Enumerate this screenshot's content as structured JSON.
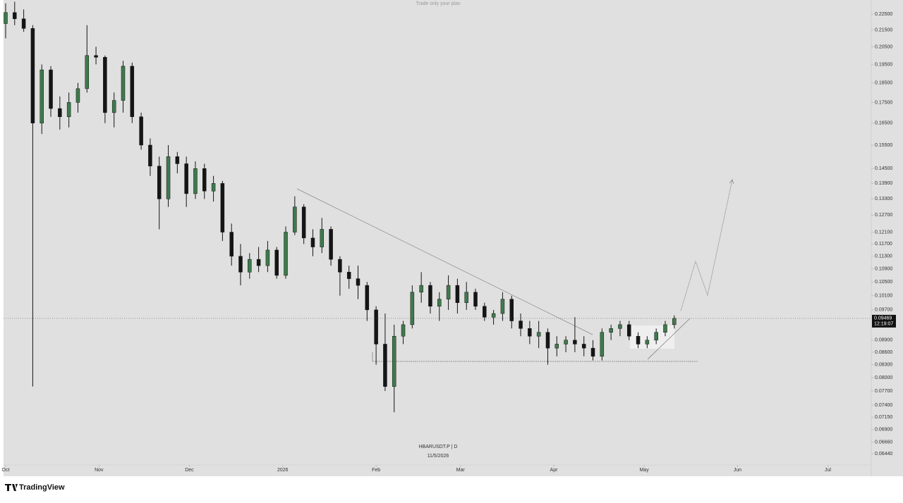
{
  "chart_data": {
    "type": "candlestick",
    "title": "Trade only your plan",
    "symbol": "HBARUSDT.P | D",
    "date_label": "11/5/2026",
    "brand": "TradingView",
    "last_price": 0.09469,
    "countdown": "12:19:07",
    "log_scale": true,
    "up_color": "#3f7a4c",
    "down_color": "#151515",
    "xlim": [
      -0.7,
      287.4
    ],
    "ylim": [
      0.0624,
      0.2342
    ],
    "xticks": [
      {
        "value": 0,
        "label": "Oct"
      },
      {
        "value": 31,
        "label": "Nov"
      },
      {
        "value": 61,
        "label": "Dec"
      },
      {
        "value": 92,
        "label": "2026"
      },
      {
        "value": 123,
        "label": "Feb"
      },
      {
        "value": 151,
        "label": "Mar"
      },
      {
        "value": 182,
        "label": "Apr"
      },
      {
        "value": 212,
        "label": "May"
      },
      {
        "value": 243,
        "label": "Jun"
      },
      {
        "value": 273,
        "label": "Jul"
      }
    ],
    "yticks": [
      {
        "value": 0.225,
        "label": "0.22500"
      },
      {
        "value": 0.215,
        "label": "0.21500"
      },
      {
        "value": 0.205,
        "label": "0.20500"
      },
      {
        "value": 0.195,
        "label": "0.19500"
      },
      {
        "value": 0.185,
        "label": "0.18500"
      },
      {
        "value": 0.175,
        "label": "0.17500"
      },
      {
        "value": 0.165,
        "label": "0.16500"
      },
      {
        "value": 0.155,
        "label": "0.15500"
      },
      {
        "value": 0.145,
        "label": "0.14500"
      },
      {
        "value": 0.139,
        "label": "0.13900"
      },
      {
        "value": 0.133,
        "label": "0.13300"
      },
      {
        "value": 0.127,
        "label": "0.12700"
      },
      {
        "value": 0.121,
        "label": "0.12100"
      },
      {
        "value": 0.117,
        "label": "0.11700"
      },
      {
        "value": 0.113,
        "label": "0.11300"
      },
      {
        "value": 0.109,
        "label": "0.10900"
      },
      {
        "value": 0.105,
        "label": "0.10500"
      },
      {
        "value": 0.101,
        "label": "0.10100"
      },
      {
        "value": 0.097,
        "label": "0.09700"
      },
      {
        "value": 0.089,
        "label": "0.08900"
      },
      {
        "value": 0.086,
        "label": "0.08600"
      },
      {
        "value": 0.083,
        "label": "0.08300"
      },
      {
        "value": 0.08,
        "label": "0.08000"
      },
      {
        "value": 0.077,
        "label": "0.07700"
      },
      {
        "value": 0.074,
        "label": "0.07400"
      },
      {
        "value": 0.0715,
        "label": "0.07150"
      },
      {
        "value": 0.069,
        "label": "0.06900"
      },
      {
        "value": 0.0666,
        "label": "0.06660"
      },
      {
        "value": 0.0644,
        "label": "0.06440"
      }
    ],
    "x": [
      0,
      3,
      6,
      9,
      12,
      15,
      18,
      21,
      24,
      27,
      30,
      33,
      36,
      39,
      42,
      45,
      48,
      51,
      54,
      57,
      60,
      63,
      66,
      69,
      72,
      75,
      78,
      81,
      84,
      87,
      90,
      93,
      96,
      99,
      102,
      105,
      108,
      111,
      114,
      117,
      120,
      123,
      126,
      129,
      132,
      135,
      138,
      141,
      144,
      147,
      150,
      153,
      156,
      159,
      162,
      165,
      168,
      171,
      174,
      177,
      180,
      183,
      186,
      189,
      192,
      195,
      198,
      201,
      204,
      207,
      210,
      213,
      216,
      219,
      222
    ],
    "candles": [
      [
        0.219,
        0.232,
        0.21,
        0.226
      ],
      [
        0.226,
        0.233,
        0.218,
        0.222
      ],
      [
        0.222,
        0.228,
        0.214,
        0.216
      ],
      [
        0.216,
        0.218,
        0.078,
        0.165
      ],
      [
        0.165,
        0.195,
        0.16,
        0.192
      ],
      [
        0.192,
        0.194,
        0.168,
        0.172
      ],
      [
        0.172,
        0.178,
        0.162,
        0.168
      ],
      [
        0.168,
        0.18,
        0.163,
        0.175
      ],
      [
        0.175,
        0.185,
        0.17,
        0.182
      ],
      [
        0.182,
        0.218,
        0.18,
        0.2
      ],
      [
        0.2,
        0.205,
        0.195,
        0.199
      ],
      [
        0.199,
        0.2,
        0.165,
        0.17
      ],
      [
        0.17,
        0.18,
        0.163,
        0.176
      ],
      [
        0.176,
        0.197,
        0.17,
        0.194
      ],
      [
        0.194,
        0.196,
        0.165,
        0.168
      ],
      [
        0.168,
        0.17,
        0.153,
        0.155
      ],
      [
        0.155,
        0.158,
        0.142,
        0.146
      ],
      [
        0.146,
        0.15,
        0.122,
        0.133
      ],
      [
        0.133,
        0.155,
        0.13,
        0.15
      ],
      [
        0.15,
        0.152,
        0.143,
        0.147
      ],
      [
        0.147,
        0.15,
        0.13,
        0.135
      ],
      [
        0.135,
        0.148,
        0.133,
        0.145
      ],
      [
        0.145,
        0.147,
        0.133,
        0.136
      ],
      [
        0.136,
        0.142,
        0.132,
        0.139
      ],
      [
        0.139,
        0.14,
        0.118,
        0.121
      ],
      [
        0.121,
        0.124,
        0.11,
        0.113
      ],
      [
        0.113,
        0.117,
        0.104,
        0.108
      ],
      [
        0.108,
        0.114,
        0.106,
        0.112
      ],
      [
        0.112,
        0.116,
        0.108,
        0.11
      ],
      [
        0.11,
        0.118,
        0.108,
        0.115
      ],
      [
        0.115,
        0.116,
        0.106,
        0.107
      ],
      [
        0.107,
        0.123,
        0.106,
        0.121
      ],
      [
        0.121,
        0.134,
        0.12,
        0.13
      ],
      [
        0.13,
        0.131,
        0.117,
        0.119
      ],
      [
        0.119,
        0.122,
        0.113,
        0.116
      ],
      [
        0.116,
        0.126,
        0.114,
        0.122
      ],
      [
        0.122,
        0.123,
        0.11,
        0.112
      ],
      [
        0.112,
        0.113,
        0.101,
        0.108
      ],
      [
        0.108,
        0.11,
        0.103,
        0.106
      ],
      [
        0.106,
        0.11,
        0.1,
        0.104
      ],
      [
        0.104,
        0.105,
        0.094,
        0.097
      ],
      [
        0.097,
        0.098,
        0.083,
        0.088
      ],
      [
        0.088,
        0.096,
        0.077,
        0.078
      ],
      [
        0.078,
        0.093,
        0.0725,
        0.09
      ],
      [
        0.09,
        0.094,
        0.088,
        0.093
      ],
      [
        0.093,
        0.104,
        0.092,
        0.102
      ],
      [
        0.102,
        0.108,
        0.099,
        0.104
      ],
      [
        0.104,
        0.105,
        0.096,
        0.098
      ],
      [
        0.098,
        0.102,
        0.094,
        0.1
      ],
      [
        0.1,
        0.107,
        0.097,
        0.104
      ],
      [
        0.104,
        0.106,
        0.096,
        0.099
      ],
      [
        0.099,
        0.105,
        0.097,
        0.102
      ],
      [
        0.102,
        0.103,
        0.097,
        0.098
      ],
      [
        0.098,
        0.099,
        0.094,
        0.095
      ],
      [
        0.095,
        0.097,
        0.093,
        0.096
      ],
      [
        0.096,
        0.102,
        0.094,
        0.1
      ],
      [
        0.1,
        0.101,
        0.092,
        0.094
      ],
      [
        0.094,
        0.096,
        0.09,
        0.092
      ],
      [
        0.092,
        0.094,
        0.088,
        0.09
      ],
      [
        0.09,
        0.094,
        0.087,
        0.091
      ],
      [
        0.091,
        0.092,
        0.083,
        0.087
      ],
      [
        0.087,
        0.09,
        0.085,
        0.088
      ],
      [
        0.088,
        0.09,
        0.086,
        0.089
      ],
      [
        0.089,
        0.095,
        0.086,
        0.088
      ],
      [
        0.088,
        0.09,
        0.085,
        0.087
      ],
      [
        0.087,
        0.089,
        0.084,
        0.085
      ],
      [
        0.085,
        0.092,
        0.084,
        0.091
      ],
      [
        0.091,
        0.093,
        0.089,
        0.092
      ],
      [
        0.092,
        0.094,
        0.09,
        0.093
      ],
      [
        0.093,
        0.094,
        0.089,
        0.09
      ],
      [
        0.09,
        0.091,
        0.087,
        0.088
      ],
      [
        0.088,
        0.09,
        0.087,
        0.089
      ],
      [
        0.089,
        0.092,
        0.088,
        0.091
      ],
      [
        0.091,
        0.094,
        0.09,
        0.093
      ],
      [
        0.093,
        0.0955,
        0.092,
        0.09469
      ]
    ]
  }
}
